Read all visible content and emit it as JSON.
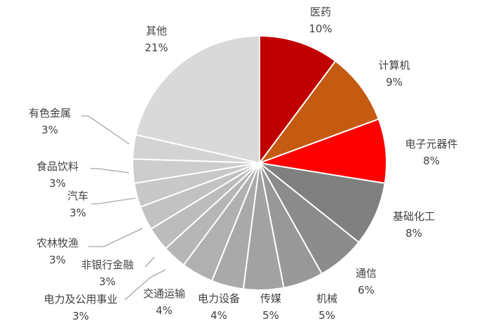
{
  "chart_data": {
    "type": "pie",
    "title": "",
    "start_angle_deg": 0,
    "direction": "clockwise",
    "slices": [
      {
        "label": "医药",
        "value": 10,
        "display": "10%",
        "color": "#c00000"
      },
      {
        "label": "计算机",
        "value": 9,
        "display": "9%",
        "color": "#c55a11"
      },
      {
        "label": "电子元器件",
        "value": 8,
        "display": "8%",
        "color": "#ff0000"
      },
      {
        "label": "基础化工",
        "value": 8,
        "display": "8%",
        "color": "#808080"
      },
      {
        "label": "通信",
        "value": 6,
        "display": "6%",
        "color": "#8c8c8c"
      },
      {
        "label": "机械",
        "value": 5,
        "display": "5%",
        "color": "#989898"
      },
      {
        "label": "传媒",
        "value": 5,
        "display": "5%",
        "color": "#a2a2a2"
      },
      {
        "label": "电力设备",
        "value": 4,
        "display": "4%",
        "color": "#a9a9a9"
      },
      {
        "label": "交通运输",
        "value": 4,
        "display": "4%",
        "color": "#b0b0b0"
      },
      {
        "label": "电力及公用事业",
        "value": 3,
        "display": "3%",
        "color": "#b6b6b6"
      },
      {
        "label": "非银行金融",
        "value": 3,
        "display": "3%",
        "color": "#bcbcbc"
      },
      {
        "label": "农林牧渔",
        "value": 3,
        "display": "3%",
        "color": "#c2c2c2"
      },
      {
        "label": "汽车",
        "value": 3,
        "display": "3%",
        "color": "#c8c8c8"
      },
      {
        "label": "食品饮料",
        "value": 3,
        "display": "3%",
        "color": "#cdcdcd"
      },
      {
        "label": "有色金属",
        "value": 3,
        "display": "3%",
        "color": "#d3d3d3"
      },
      {
        "label": "其他",
        "value": 21,
        "display": "21%",
        "color": "#d9d9d9"
      }
    ]
  }
}
